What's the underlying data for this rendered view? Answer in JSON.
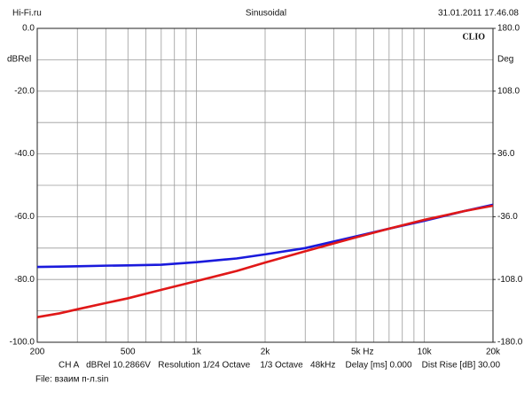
{
  "chart_data": {
    "type": "line",
    "header_left": "Hi-Fi.ru",
    "header_center": "Sinusoidal",
    "header_right": "31.01.2011 17.46.08",
    "brand": "CLIO",
    "ylabel": "dBRel",
    "y2label": "Deg",
    "x_unit": "Hz",
    "footer_info": "CH A   dBRel 10.2866V   Resolution 1/24 Octave    1/3 Octave   48kHz    Delay [ms] 0.000    Dist Rise [dB] 30.00",
    "file_info": "File: взаим п-л.sin",
    "x_log": true,
    "grid": true,
    "xlim": [
      200,
      20000
    ],
    "xticks": [
      200,
      500,
      {
        "value": 1000,
        "label": "1k"
      },
      {
        "value": 2000,
        "label": "2k"
      },
      {
        "value": 5000,
        "label": "5k"
      },
      {
        "value": 10000,
        "label": "10k"
      },
      {
        "value": 20000,
        "label": "20k"
      }
    ],
    "x_minor_ticks": [
      300,
      400,
      600,
      700,
      800,
      900,
      3000,
      4000,
      6000,
      7000,
      8000,
      9000
    ],
    "ylim": [
      -100,
      0
    ],
    "yticks": [
      {
        "value": 0,
        "label": "0.0"
      },
      {
        "value": -20,
        "label": "-20.0"
      },
      {
        "value": -40,
        "label": "-40.0"
      },
      {
        "value": -60,
        "label": "-60.0"
      },
      {
        "value": -80,
        "label": "-80.0"
      },
      {
        "value": -100,
        "label": "-100.0"
      }
    ],
    "y_minor_ticks": [
      -10,
      -30,
      -50,
      -70,
      -90
    ],
    "y2lim": [
      -180,
      180
    ],
    "y2ticks": [
      {
        "value": 180,
        "label": "180.0"
      },
      {
        "value": 108,
        "label": "108.0"
      },
      {
        "value": 36,
        "label": "36.0"
      },
      {
        "value": -36,
        "label": "-36.0"
      },
      {
        "value": -108,
        "label": "-108.0"
      },
      {
        "value": -180,
        "label": "-180.0"
      }
    ],
    "x": [
      200,
      250,
      300,
      400,
      500,
      700,
      1000,
      1500,
      2000,
      3000,
      5000,
      7000,
      10000,
      15000,
      20000
    ],
    "series": [
      {
        "color": "#1a1adc",
        "values": [
          -76,
          -75.9,
          -75.8,
          -75.6,
          -75.5,
          -75.3,
          -74.5,
          -73.3,
          -72,
          -70,
          -66.3,
          -63.8,
          -61.3,
          -58.2,
          -56.2
        ]
      },
      {
        "color": "#e01818",
        "values": [
          -92,
          -90.8,
          -89.5,
          -87.5,
          -86,
          -83.3,
          -80.5,
          -77.3,
          -74.6,
          -71,
          -66.6,
          -63.8,
          -61,
          -58.2,
          -56.5
        ]
      }
    ]
  }
}
